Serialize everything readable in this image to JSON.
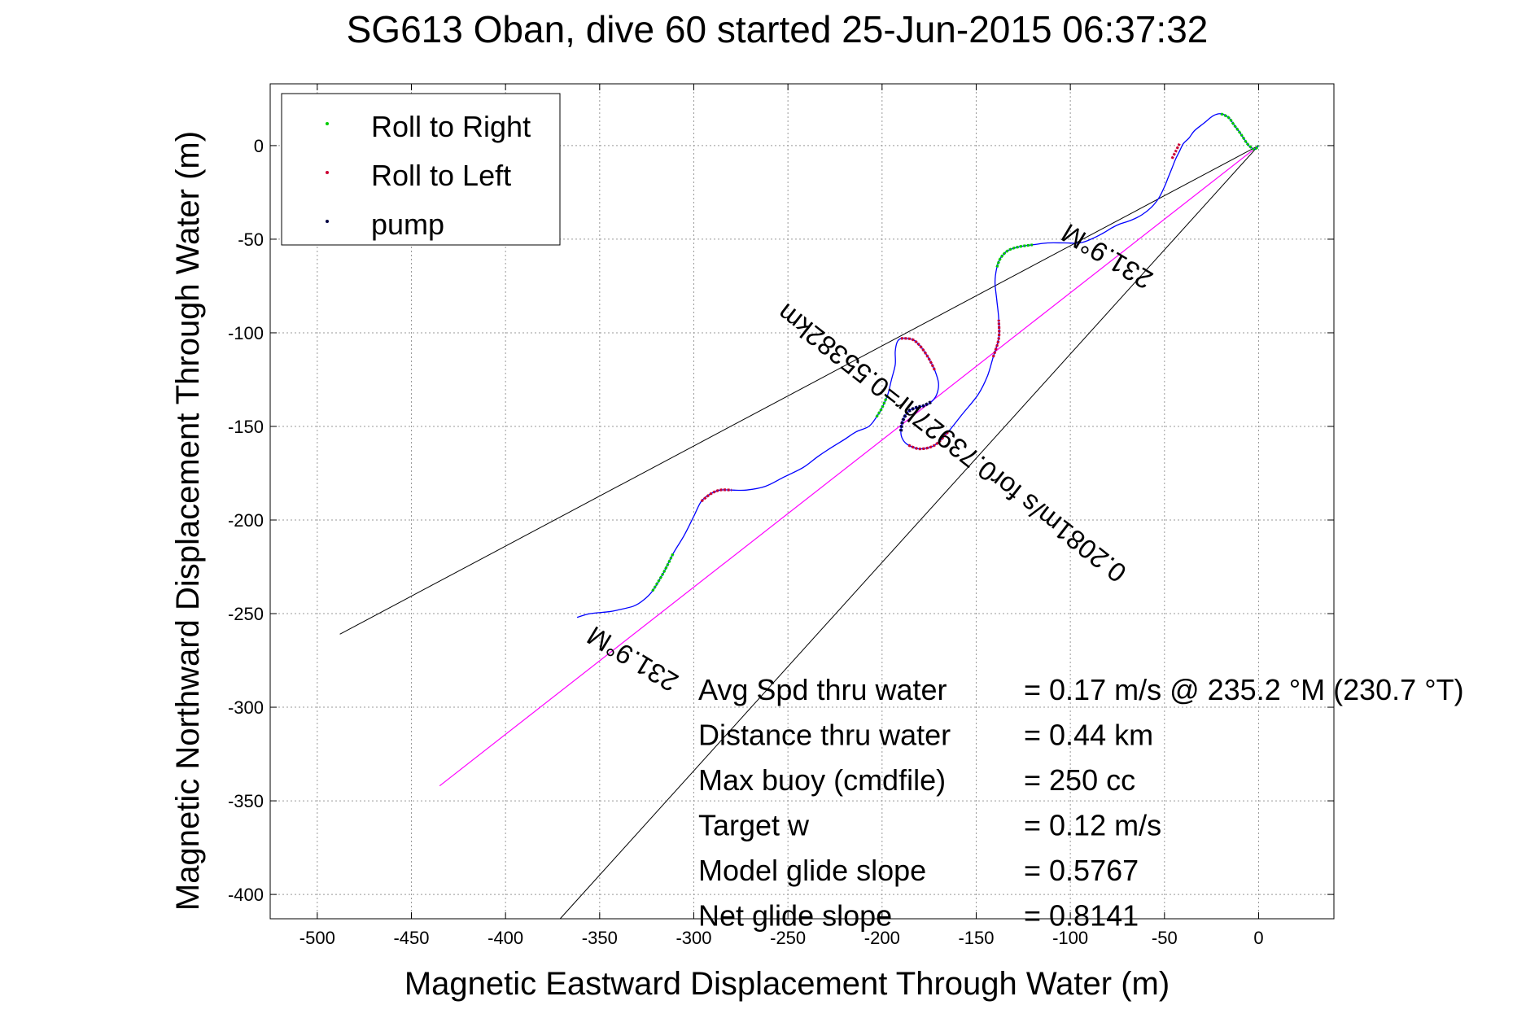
{
  "chart_data": {
    "type": "line",
    "title": "SG613 Oban, dive 60 started 25-Jun-2015 06:37:32",
    "xlabel": "Magnetic Eastward Displacement Through Water (m)",
    "ylabel": "Magnetic Northward Displacement Through Water (m)",
    "xlim": [
      -525,
      40
    ],
    "ylim": [
      -413,
      33
    ],
    "xticks": [
      -500,
      -450,
      -400,
      -350,
      -300,
      -250,
      -200,
      -150,
      -100,
      -50,
      0
    ],
    "yticks": [
      0,
      -50,
      -100,
      -150,
      -200,
      -250,
      -300,
      -350,
      -400
    ],
    "grid": true,
    "legend_placement": "top-left",
    "legend": [
      {
        "label": "Roll to Right",
        "color": "#00cc00"
      },
      {
        "label": "Roll to Left",
        "color": "#cc0033"
      },
      {
        "label": "pump",
        "color": "#000040"
      }
    ],
    "colors": {
      "track": "#0000ff",
      "roll_right": "#00cc00",
      "roll_left": "#cc0033",
      "pump": "#000040",
      "magenta_line": "#ff00ff",
      "cone": "#000000"
    },
    "track": {
      "x": [
        -362,
        -355,
        -345,
        -340,
        -332,
        -327,
        -322,
        -316,
        -311,
        -305,
        -300,
        -296,
        -291,
        -286,
        -280,
        -272,
        -262,
        -252,
        -242,
        -234,
        -228,
        -220,
        -214,
        -207,
        -203,
        -200,
        -197,
        -195,
        -193,
        -193,
        -192,
        -190,
        -187,
        -183,
        -179,
        -175,
        -172,
        -170,
        -171,
        -174,
        -178,
        -182,
        -186,
        -189,
        -190,
        -189,
        -186,
        -180,
        -172,
        -165,
        -157,
        -149,
        -144,
        -141,
        -138,
        -138,
        -139,
        -140,
        -139,
        -137,
        -133,
        -127,
        -120,
        -112,
        -103,
        -95,
        -89,
        -83,
        -78,
        -74,
        -68,
        -62,
        -57,
        -53,
        -50,
        -48,
        -46,
        -44,
        -42,
        -40,
        -37,
        -34,
        -29,
        -24,
        -20,
        -16,
        -13,
        -10,
        -8,
        -6,
        -4,
        -2,
        0
      ],
      "y": [
        -252,
        -250,
        -249,
        -248,
        -246,
        -243,
        -238,
        -228,
        -218,
        -208,
        -198,
        -190,
        -186,
        -184,
        -184,
        -184,
        -182,
        -177,
        -172,
        -166,
        -162,
        -157,
        -153,
        -150,
        -145,
        -140,
        -133,
        -125,
        -117,
        -110,
        -105,
        -103,
        -103,
        -104,
        -108,
        -114,
        -120,
        -127,
        -133,
        -137,
        -139,
        -140,
        -142,
        -147,
        -153,
        -157,
        -160,
        -162,
        -160,
        -153,
        -143,
        -133,
        -123,
        -113,
        -103,
        -93,
        -83,
        -73,
        -65,
        -60,
        -56,
        -54,
        -53,
        -52,
        -52,
        -52,
        -50,
        -47,
        -44,
        -42,
        -40,
        -37,
        -33,
        -28,
        -22,
        -17,
        -12,
        -7,
        -3,
        1,
        4,
        8,
        12,
        16,
        17,
        15,
        11,
        7,
        4,
        1,
        -1,
        -2,
        0
      ]
    },
    "roll_right_segments": [
      {
        "x": [
          -322,
          -316,
          -311
        ],
        "y": [
          -238,
          -228,
          -218
        ]
      },
      {
        "x": [
          -203,
          -200,
          -197
        ],
        "y": [
          -145,
          -140,
          -133
        ]
      },
      {
        "x": [
          -139,
          -137,
          -133,
          -127,
          -120
        ],
        "y": [
          -65,
          -60,
          -56,
          -54,
          -53
        ]
      },
      {
        "x": [
          -20,
          -16,
          -13,
          -10,
          -8,
          -6,
          -4,
          -2,
          0
        ],
        "y": [
          17,
          15,
          11,
          7,
          4,
          1,
          -1,
          -2,
          0
        ]
      }
    ],
    "roll_left_segments": [
      {
        "x": [
          -296,
          -291,
          -286,
          -280
        ],
        "y": [
          -190,
          -186,
          -184,
          -184
        ]
      },
      {
        "x": [
          -190,
          -187,
          -183,
          -179,
          -175,
          -172
        ],
        "y": [
          -103,
          -103,
          -104,
          -108,
          -114,
          -120
        ]
      },
      {
        "x": [
          -186,
          -180,
          -172,
          -165
        ],
        "y": [
          -160,
          -162,
          -160,
          -153
        ]
      },
      {
        "x": [
          -141,
          -138,
          -138
        ],
        "y": [
          -113,
          -103,
          -93
        ]
      },
      {
        "x": [
          -46,
          -44,
          -42
        ],
        "y": [
          -7,
          -3,
          1
        ]
      }
    ],
    "pump_segments": [
      {
        "x": [
          -174,
          -178,
          -182,
          -186,
          -189,
          -190
        ],
        "y": [
          -137,
          -139,
          -140,
          -142,
          -147,
          -153
        ]
      }
    ],
    "lines": {
      "magenta": {
        "x": [
          0,
          -435
        ],
        "y": [
          0,
          -342
        ]
      },
      "cone_left": {
        "x": [
          0,
          -488
        ],
        "y": [
          0,
          -261
        ]
      },
      "cone_right": {
        "x": [
          0,
          -371
        ],
        "y": [
          0,
          -413
        ]
      }
    },
    "annotations": [
      {
        "text": "231.9°M",
        "x": -330,
        "y": -270,
        "rotate": 211
      },
      {
        "text": "231.9°M",
        "x": -78,
        "y": -55,
        "rotate": 211
      },
      {
        "text": "0.2081m/s for0.73927hr=0.55382km",
        "x": -160,
        "y": -155,
        "rotate": 218
      }
    ],
    "stats": [
      {
        "label": "Avg Spd thru water",
        "value": "=  0.17 m/s @ 235.2 °M (230.7 °T)"
      },
      {
        "label": "Distance thru water",
        "value": "=  0.44 km"
      },
      {
        "label": "Max buoy (cmdfile)",
        "value": "= 250 cc"
      },
      {
        "label": "Target w",
        "value": "= 0.12 m/s"
      },
      {
        "label": "Model glide slope",
        "value": "= 0.5767"
      },
      {
        "label": "Net glide slope",
        "value": "= 0.8141"
      }
    ]
  }
}
